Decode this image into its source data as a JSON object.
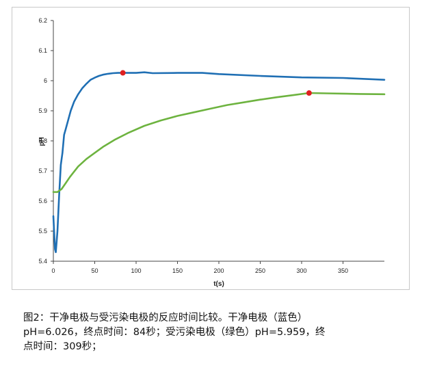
{
  "caption": {
    "line1": "图2：干净电极与受污染电极的反应时间比较。干净电极（蓝色）",
    "line2": "pH=6.026，终点时间：84秒；受污染电极（绿色）pH=5.959，终",
    "line3": "点时间：309秒；"
  },
  "chart_data": {
    "type": "line",
    "xlabel": "t(s)",
    "ylabel": "pH",
    "xlim": [
      0,
      400
    ],
    "ylim": [
      5.4,
      6.2
    ],
    "x_ticks": [
      0,
      50,
      100,
      150,
      200,
      250,
      300,
      350
    ],
    "x_tick_labels": [
      "0",
      "50",
      "100",
      "150",
      "200",
      "250",
      "300",
      "350"
    ],
    "y_ticks": [
      5.4,
      5.5,
      5.6,
      5.7,
      5.8,
      5.9,
      6.0,
      6.1,
      6.2
    ],
    "y_tick_labels": [
      "5.4",
      "5.5",
      "5.6",
      "5.7",
      "5.8",
      "5.9",
      "6",
      "6.1",
      "6.2"
    ],
    "grid": false,
    "series": [
      {
        "color": "#1f6fb4",
        "x": [
          0,
          2,
          3,
          5,
          7,
          9,
          11,
          13,
          15,
          18,
          21,
          25,
          30,
          35,
          40,
          45,
          50,
          55,
          60,
          66,
          72,
          78,
          84,
          90,
          100,
          110,
          120,
          150,
          180,
          200,
          250,
          300,
          350,
          400
        ],
        "y": [
          5.55,
          5.44,
          5.43,
          5.5,
          5.62,
          5.72,
          5.76,
          5.82,
          5.84,
          5.87,
          5.9,
          5.93,
          5.955,
          5.975,
          5.99,
          6.003,
          6.01,
          6.016,
          6.02,
          6.023,
          6.025,
          6.026,
          6.026,
          6.026,
          6.026,
          6.028,
          6.025,
          6.026,
          6.026,
          6.022,
          6.016,
          6.011,
          6.009,
          6.003
        ]
      },
      {
        "color": "#6db33f",
        "x": [
          0,
          5,
          10,
          15,
          20,
          30,
          40,
          50,
          60,
          75,
          90,
          110,
          130,
          150,
          170,
          190,
          210,
          230,
          250,
          270,
          290,
          309,
          330,
          350,
          370,
          400
        ],
        "y": [
          5.63,
          5.63,
          5.64,
          5.66,
          5.68,
          5.715,
          5.74,
          5.76,
          5.78,
          5.805,
          5.826,
          5.85,
          5.868,
          5.883,
          5.895,
          5.907,
          5.919,
          5.928,
          5.937,
          5.945,
          5.952,
          5.959,
          5.958,
          5.957,
          5.956,
          5.955
        ]
      }
    ],
    "endpoints": [
      {
        "x": 84,
        "y": 6.026,
        "color": "#e02020"
      },
      {
        "x": 309,
        "y": 5.959,
        "color": "#e02020"
      }
    ]
  }
}
